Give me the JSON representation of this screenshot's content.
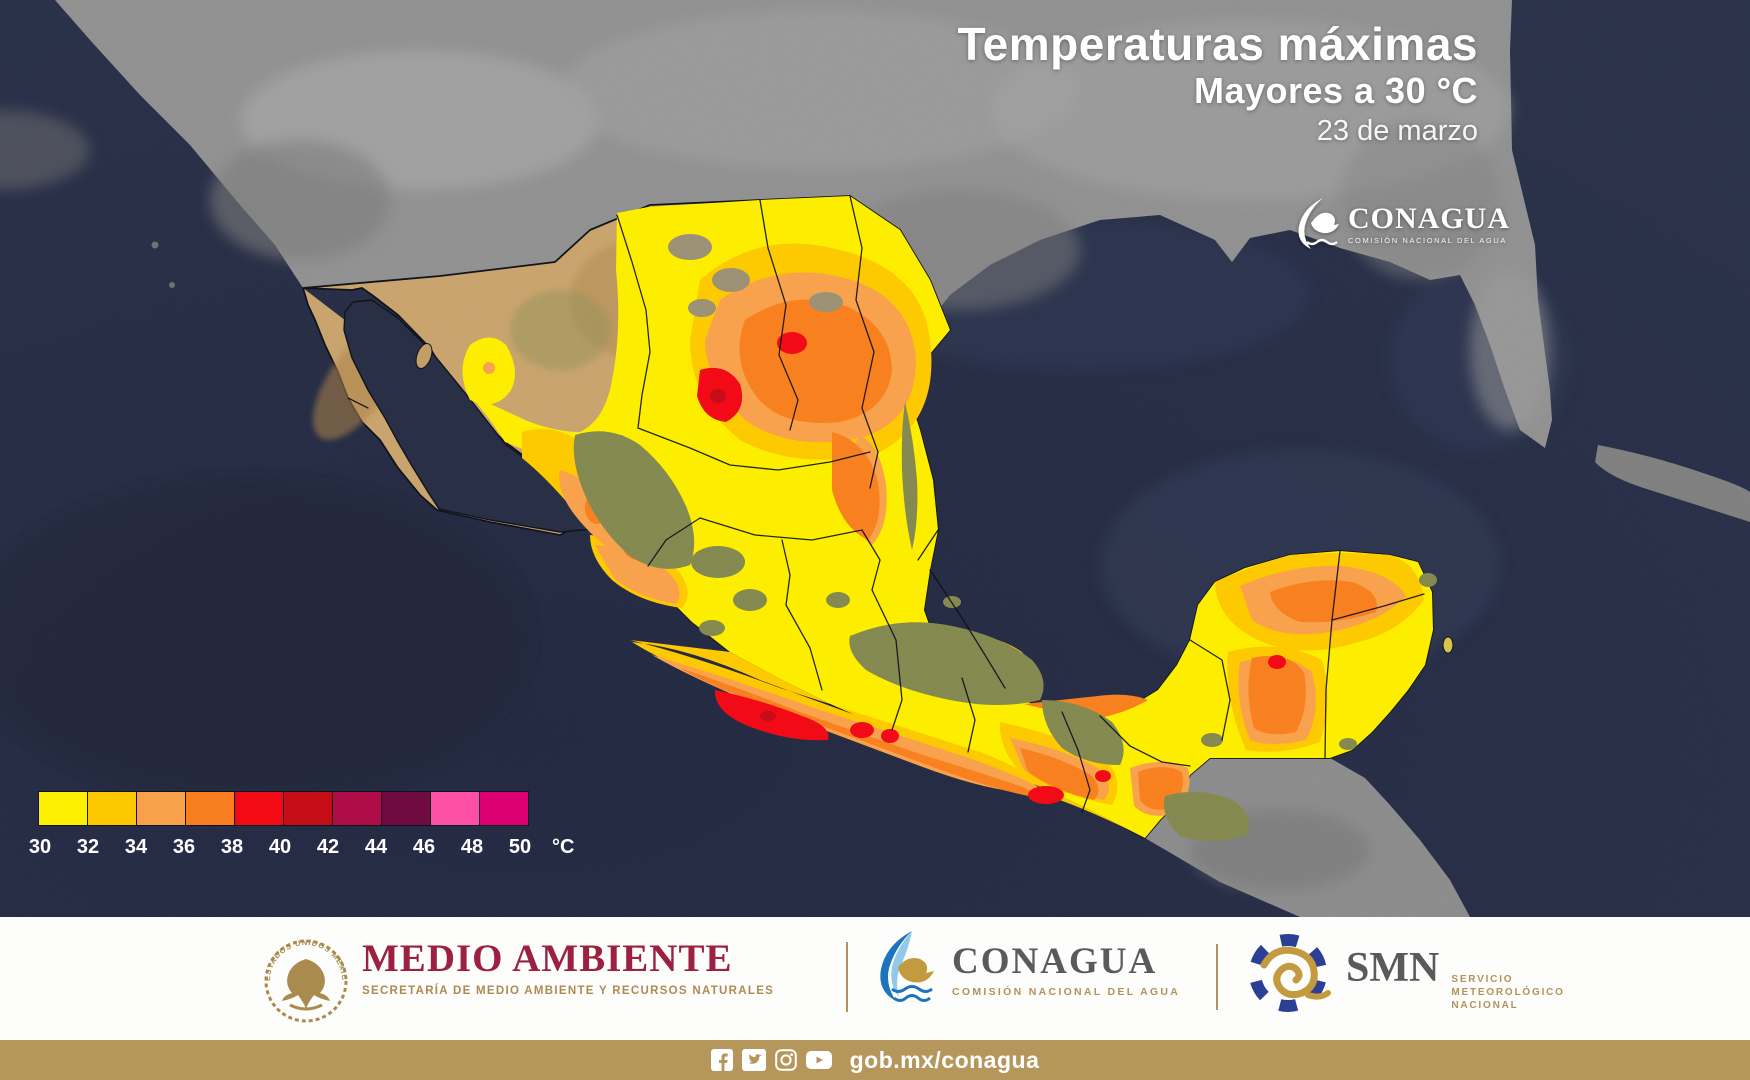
{
  "header": {
    "title": "Temperaturas máximas",
    "subtitle": "Mayores a 30 °C",
    "date": "23 de marzo"
  },
  "conagua_badge": {
    "name": "CONAGUA",
    "tagline": "COMISIÓN NACIONAL DEL AGUA"
  },
  "legend": {
    "unit": "°C",
    "ticks": [
      "30",
      "32",
      "34",
      "36",
      "38",
      "40",
      "42",
      "44",
      "46",
      "48",
      "50"
    ],
    "colors": [
      "#fdf000",
      "#fdc800",
      "#f9a04b",
      "#f87e1f",
      "#f20a15",
      "#c40d16",
      "#b00d48",
      "#6f0b41",
      "#fd50a5",
      "#dd0070"
    ]
  },
  "footer": {
    "semarnat": {
      "seal_text": "ESTADOS UNIDOS MEXICANOS",
      "title": "MEDIO AMBIENTE",
      "subtitle": "SECRETARÍA DE MEDIO AMBIENTE Y RECURSOS NATURALES"
    },
    "conagua": {
      "title": "CONAGUA",
      "subtitle": "COMISIÓN NACIONAL DEL AGUA"
    },
    "smn": {
      "title": "SMN",
      "subtitle_lines": [
        "SERVICIO",
        "METEOROLÓGICO",
        "NACIONAL"
      ]
    }
  },
  "bottombar": {
    "url": "gob.mx/conagua",
    "icons": [
      "facebook-icon",
      "twitter-icon",
      "instagram-icon",
      "youtube-icon"
    ]
  },
  "colors": {
    "ocean": "#272e44",
    "usa_land": "#8f8f8f",
    "mexico_land_tan": "#c8a26b",
    "terrain_olive": "#82874f",
    "footer_burgundy": "#9c2140",
    "footer_gold": "#b3925a",
    "logo_gray": "#595a5c",
    "logo_blue": "#1c75bc",
    "logo_navy": "#2b3f94",
    "bar_gold": "#b5975c"
  }
}
